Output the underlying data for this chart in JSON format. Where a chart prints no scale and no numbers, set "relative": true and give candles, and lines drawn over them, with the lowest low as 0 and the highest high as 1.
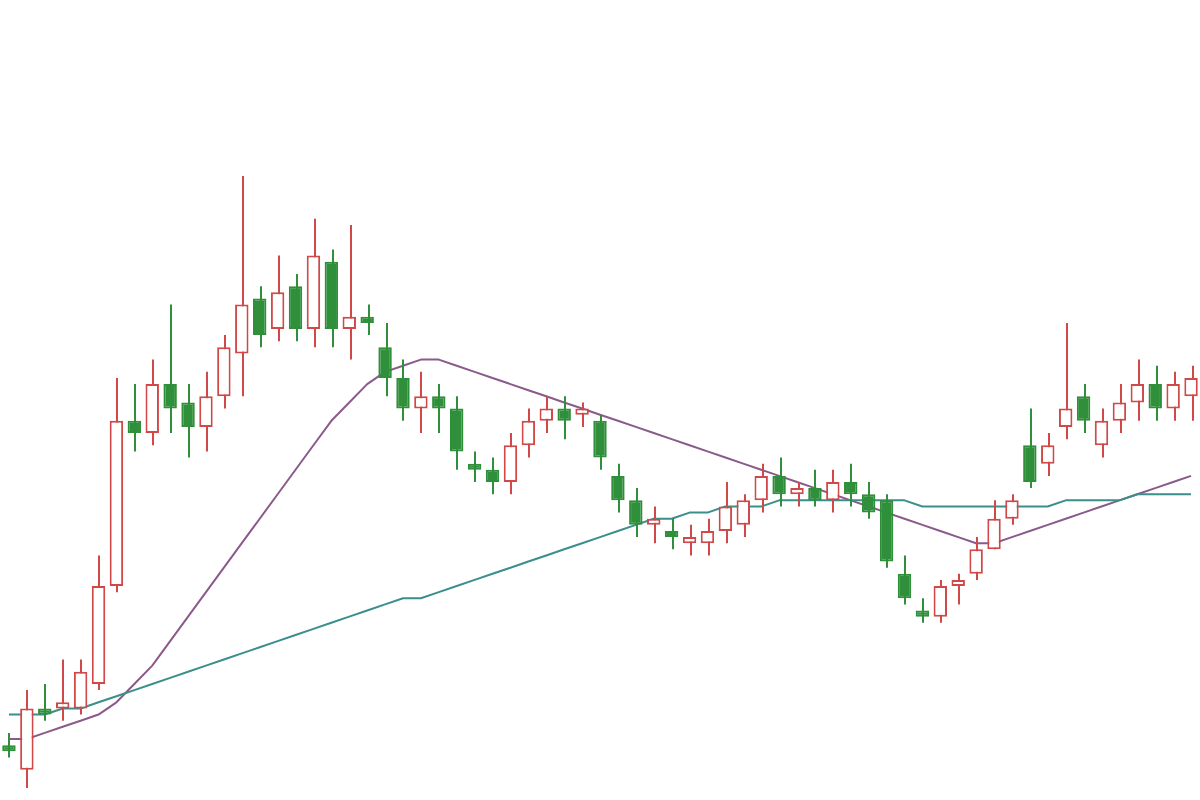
{
  "chart_data": {
    "type": "candlestick",
    "relative": true,
    "legend": false,
    "categories": [
      null,
      null,
      null,
      null,
      null,
      null,
      null,
      null,
      null,
      null,
      null,
      null,
      null,
      null,
      null,
      null,
      null,
      null,
      null,
      null,
      null,
      null,
      null,
      null,
      null,
      null,
      null,
      null,
      null,
      null,
      null,
      null,
      null,
      null,
      null,
      null,
      null,
      null,
      null,
      null,
      null,
      null,
      null,
      null,
      null,
      null,
      null,
      null,
      null,
      null,
      null,
      null,
      null,
      null,
      null,
      null,
      null,
      null,
      null,
      null,
      null,
      null,
      null,
      null,
      null,
      null,
      null
    ],
    "ohlc": [
      [
        0.07,
        0.09,
        0.05,
        0.06
      ],
      [
        0.03,
        0.16,
        0,
        0.13
      ],
      [
        0.13,
        0.17,
        0.11,
        0.12
      ],
      [
        0.13,
        0.21,
        0.11,
        0.14
      ],
      [
        0.13,
        0.21,
        0.12,
        0.19
      ],
      [
        0.17,
        0.38,
        0.16,
        0.33
      ],
      [
        0.33,
        0.67,
        0.32,
        0.6
      ],
      [
        0.6,
        0.66,
        0.55,
        0.58
      ],
      [
        0.58,
        0.7,
        0.56,
        0.66
      ],
      [
        0.66,
        0.79,
        0.58,
        0.62
      ],
      [
        0.63,
        0.66,
        0.54,
        0.59
      ],
      [
        0.59,
        0.68,
        0.55,
        0.64
      ],
      [
        0.64,
        0.74,
        0.62,
        0.72
      ],
      [
        0.71,
        1,
        0.64,
        0.79
      ],
      [
        0.8,
        0.82,
        0.72,
        0.74
      ],
      [
        0.75,
        0.87,
        0.73,
        0.81
      ],
      [
        0.82,
        0.84,
        0.73,
        0.75
      ],
      [
        0.75,
        0.93,
        0.72,
        0.87
      ],
      [
        0.86,
        0.88,
        0.72,
        0.75
      ],
      [
        0.75,
        0.92,
        0.7,
        0.77
      ],
      [
        0.77,
        0.79,
        0.74,
        0.76
      ],
      [
        0.72,
        0.76,
        0.64,
        0.67
      ],
      [
        0.67,
        0.7,
        0.6,
        0.62
      ],
      [
        0.62,
        0.68,
        0.58,
        0.64
      ],
      [
        0.64,
        0.66,
        0.58,
        0.62
      ],
      [
        0.62,
        0.64,
        0.52,
        0.55
      ],
      [
        0.53,
        0.55,
        0.5,
        0.52
      ],
      [
        0.52,
        0.54,
        0.48,
        0.5
      ],
      [
        0.5,
        0.58,
        0.48,
        0.56
      ],
      [
        0.56,
        0.62,
        0.54,
        0.6
      ],
      [
        0.6,
        0.64,
        0.58,
        0.62
      ],
      [
        0.62,
        0.64,
        0.57,
        0.6
      ],
      [
        0.61,
        0.63,
        0.59,
        0.62
      ],
      [
        0.6,
        0.61,
        0.52,
        0.54
      ],
      [
        0.51,
        0.53,
        0.45,
        0.47
      ],
      [
        0.47,
        0.49,
        0.41,
        0.43
      ],
      [
        0.43,
        0.46,
        0.4,
        0.44
      ],
      [
        0.42,
        0.44,
        0.39,
        0.41
      ],
      [
        0.4,
        0.43,
        0.38,
        0.41
      ],
      [
        0.4,
        0.44,
        0.38,
        0.42
      ],
      [
        0.42,
        0.5,
        0.4,
        0.46
      ],
      [
        0.43,
        0.48,
        0.41,
        0.47
      ],
      [
        0.47,
        0.53,
        0.45,
        0.51
      ],
      [
        0.51,
        0.54,
        0.46,
        0.48
      ],
      [
        0.48,
        0.5,
        0.46,
        0.49
      ],
      [
        0.49,
        0.52,
        0.46,
        0.47
      ],
      [
        0.47,
        0.52,
        0.45,
        0.5
      ],
      [
        0.5,
        0.53,
        0.46,
        0.48
      ],
      [
        0.48,
        0.5,
        0.44,
        0.45
      ],
      [
        0.47,
        0.48,
        0.36,
        0.37
      ],
      [
        0.35,
        0.38,
        0.3,
        0.31
      ],
      [
        0.29,
        0.31,
        0.27,
        0.28
      ],
      [
        0.28,
        0.34,
        0.27,
        0.33
      ],
      [
        0.33,
        0.35,
        0.3,
        0.34
      ],
      [
        0.35,
        0.41,
        0.34,
        0.39
      ],
      [
        0.39,
        0.47,
        0.39,
        0.44
      ],
      [
        0.44,
        0.48,
        0.43,
        0.47
      ],
      [
        0.56,
        0.62,
        0.49,
        0.5
      ],
      [
        0.53,
        0.58,
        0.51,
        0.56
      ],
      [
        0.59,
        0.76,
        0.57,
        0.62
      ],
      [
        0.64,
        0.66,
        0.58,
        0.6
      ],
      [
        0.56,
        0.62,
        0.54,
        0.6
      ],
      [
        0.6,
        0.66,
        0.58,
        0.63
      ],
      [
        0.63,
        0.7,
        0.6,
        0.66
      ],
      [
        0.66,
        0.69,
        0.6,
        0.62
      ],
      [
        0.62,
        0.68,
        0.6,
        0.66
      ],
      [
        0.64,
        0.69,
        0.6,
        0.67
      ]
    ],
    "colors": [
      "#2f8f3a",
      "#d04848",
      "#2f8f3a",
      "#d04848",
      "#d04848",
      "#d04848",
      "#d04848",
      "#2f8f3a",
      "#d04848",
      "#2f8f3a",
      "#2f8f3a",
      "#d04848",
      "#d04848",
      "#d04848",
      "#2f8f3a",
      "#d04848",
      "#2f8f3a",
      "#d04848",
      "#2f8f3a",
      "#d04848",
      "#2f8f3a",
      "#2f8f3a",
      "#2f8f3a",
      "#d04848",
      "#2f8f3a",
      "#2f8f3a",
      "#2f8f3a",
      "#2f8f3a",
      "#d04848",
      "#d04848",
      "#d04848",
      "#2f8f3a",
      "#d04848",
      "#2f8f3a",
      "#2f8f3a",
      "#2f8f3a",
      "#d04848",
      "#2f8f3a",
      "#d04848",
      "#d04848",
      "#d04848",
      "#d04848",
      "#d04848",
      "#2f8f3a",
      "#d04848",
      "#2f8f3a",
      "#d04848",
      "#2f8f3a",
      "#2f8f3a",
      "#2f8f3a",
      "#2f8f3a",
      "#2f8f3a",
      "#d04848",
      "#d04848",
      "#d04848",
      "#d04848",
      "#d04848",
      "#2f8f3a",
      "#d04848",
      "#d04848",
      "#2f8f3a",
      "#d04848",
      "#d04848",
      "#d04848",
      "#2f8f3a",
      "#d04848",
      "#d04848"
    ],
    "series": [
      {
        "type": "line",
        "color": "#3a8f8a",
        "values": [
          0.12,
          0.12,
          0.12,
          0.13,
          0.13,
          0.14,
          0.15,
          0.16,
          0.17,
          0.18,
          0.19,
          0.2,
          0.21,
          0.22,
          0.23,
          0.24,
          0.25,
          0.26,
          0.27,
          0.28,
          0.29,
          0.3,
          0.31,
          0.31,
          0.32,
          0.33,
          0.34,
          0.35,
          0.36,
          0.37,
          0.38,
          0.39,
          0.4,
          0.41,
          0.42,
          0.43,
          0.44,
          0.44,
          0.45,
          0.45,
          0.46,
          0.46,
          0.46,
          0.47,
          0.47,
          0.47,
          0.47,
          0.47,
          0.47,
          0.47,
          0.47,
          0.46,
          0.46,
          0.46,
          0.46,
          0.46,
          0.46,
          0.46,
          0.46,
          0.47,
          0.47,
          0.47,
          0.47,
          0.48,
          0.48,
          0.48,
          0.48
        ]
      },
      {
        "type": "line",
        "color": "#8a5a8a",
        "values": [
          0.08,
          0.08,
          0.09,
          0.1,
          0.11,
          0.12,
          0.14,
          0.17,
          0.2,
          0.24,
          0.28,
          0.32,
          0.36,
          0.4,
          0.44,
          0.48,
          0.52,
          0.56,
          0.6,
          0.63,
          0.66,
          0.68,
          0.69,
          0.7,
          0.7,
          0.69,
          0.68,
          0.67,
          0.66,
          0.65,
          0.64,
          0.63,
          0.62,
          0.61,
          0.6,
          0.59,
          0.58,
          0.57,
          0.56,
          0.55,
          0.54,
          0.53,
          0.52,
          0.51,
          0.5,
          0.49,
          0.48,
          0.47,
          0.46,
          0.45,
          0.44,
          0.43,
          0.42,
          0.41,
          0.4,
          0.4,
          0.41,
          0.42,
          0.43,
          0.44,
          0.45,
          0.46,
          0.47,
          0.48,
          0.49,
          0.5,
          0.51
        ]
      }
    ]
  }
}
